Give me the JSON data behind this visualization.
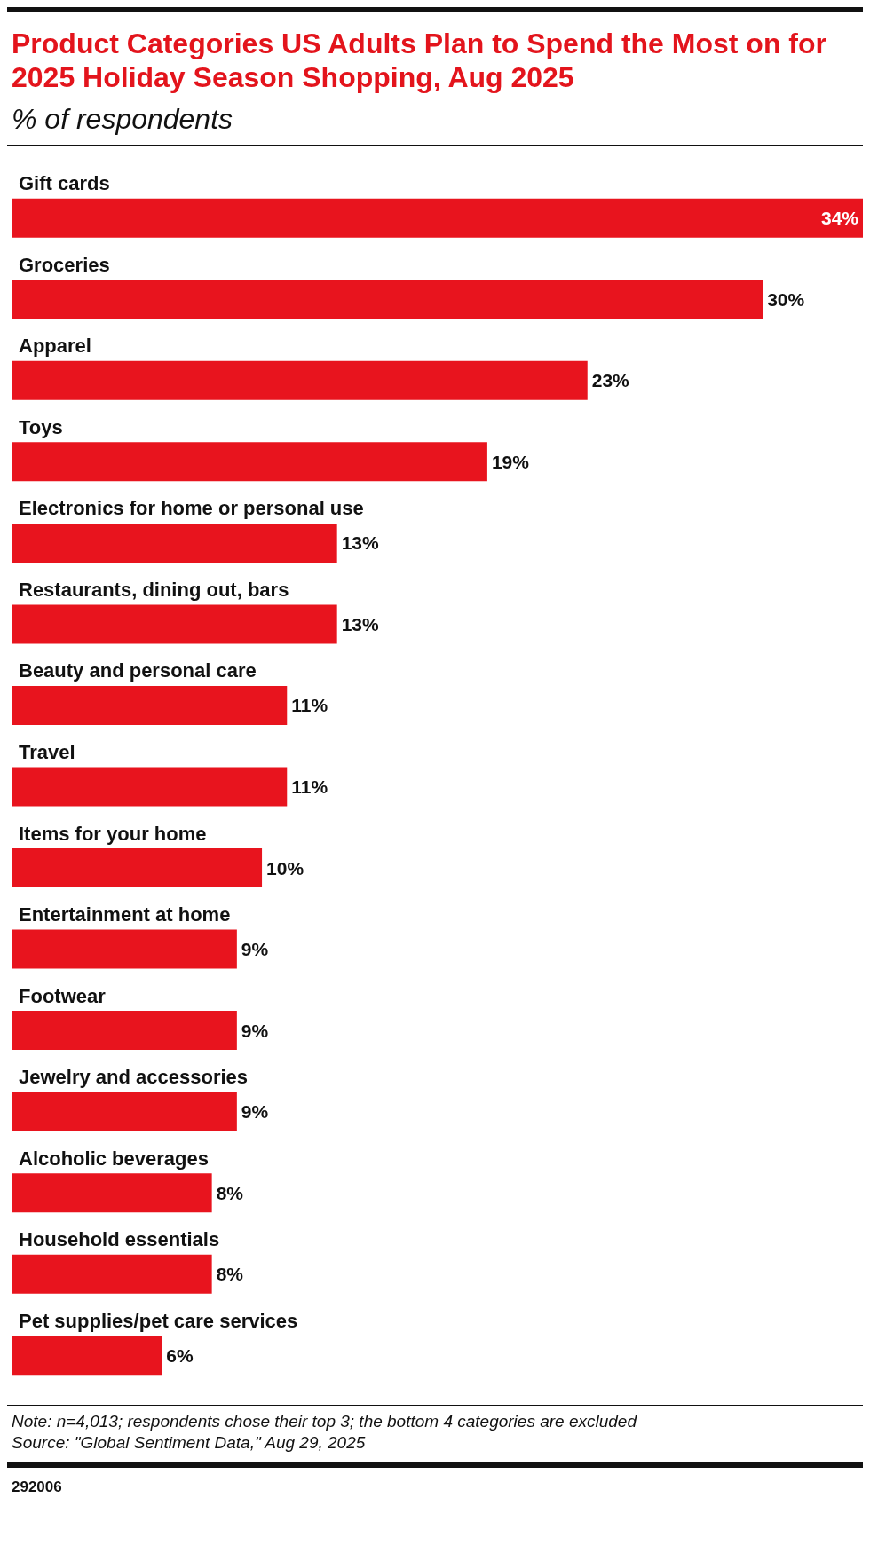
{
  "chart_data": {
    "type": "bar",
    "orientation": "horizontal",
    "title": "Product Categories US Adults Plan to Spend the Most on for 2025 Holiday Season Shopping, Aug 2025",
    "subtitle": "% of respondents",
    "categories": [
      "Gift cards",
      "Groceries",
      "Apparel",
      "Toys",
      "Electronics for home or personal use",
      "Restaurants, dining out, bars",
      "Beauty and personal care",
      "Travel",
      "Items for your home",
      "Entertainment at home",
      "Footwear",
      "Jewelry and accessories",
      "Alcoholic beverages",
      "Household essentials",
      "Pet supplies/pet care services"
    ],
    "values": [
      34,
      30,
      23,
      19,
      13,
      13,
      11,
      11,
      10,
      9,
      9,
      9,
      8,
      8,
      6
    ],
    "value_labels": [
      "34%",
      "30%",
      "23%",
      "19%",
      "13%",
      "13%",
      "11%",
      "11%",
      "10%",
      "9%",
      "9%",
      "9%",
      "8%",
      "8%",
      "6%"
    ],
    "color": "#e8141e",
    "annotations": [
      "Note: n=4,013; respondents chose their top 3; the bottom 4 categories are excluded",
      "Source: \"Global Sentiment Data,\" Aug 29, 2025",
      "292006"
    ]
  }
}
